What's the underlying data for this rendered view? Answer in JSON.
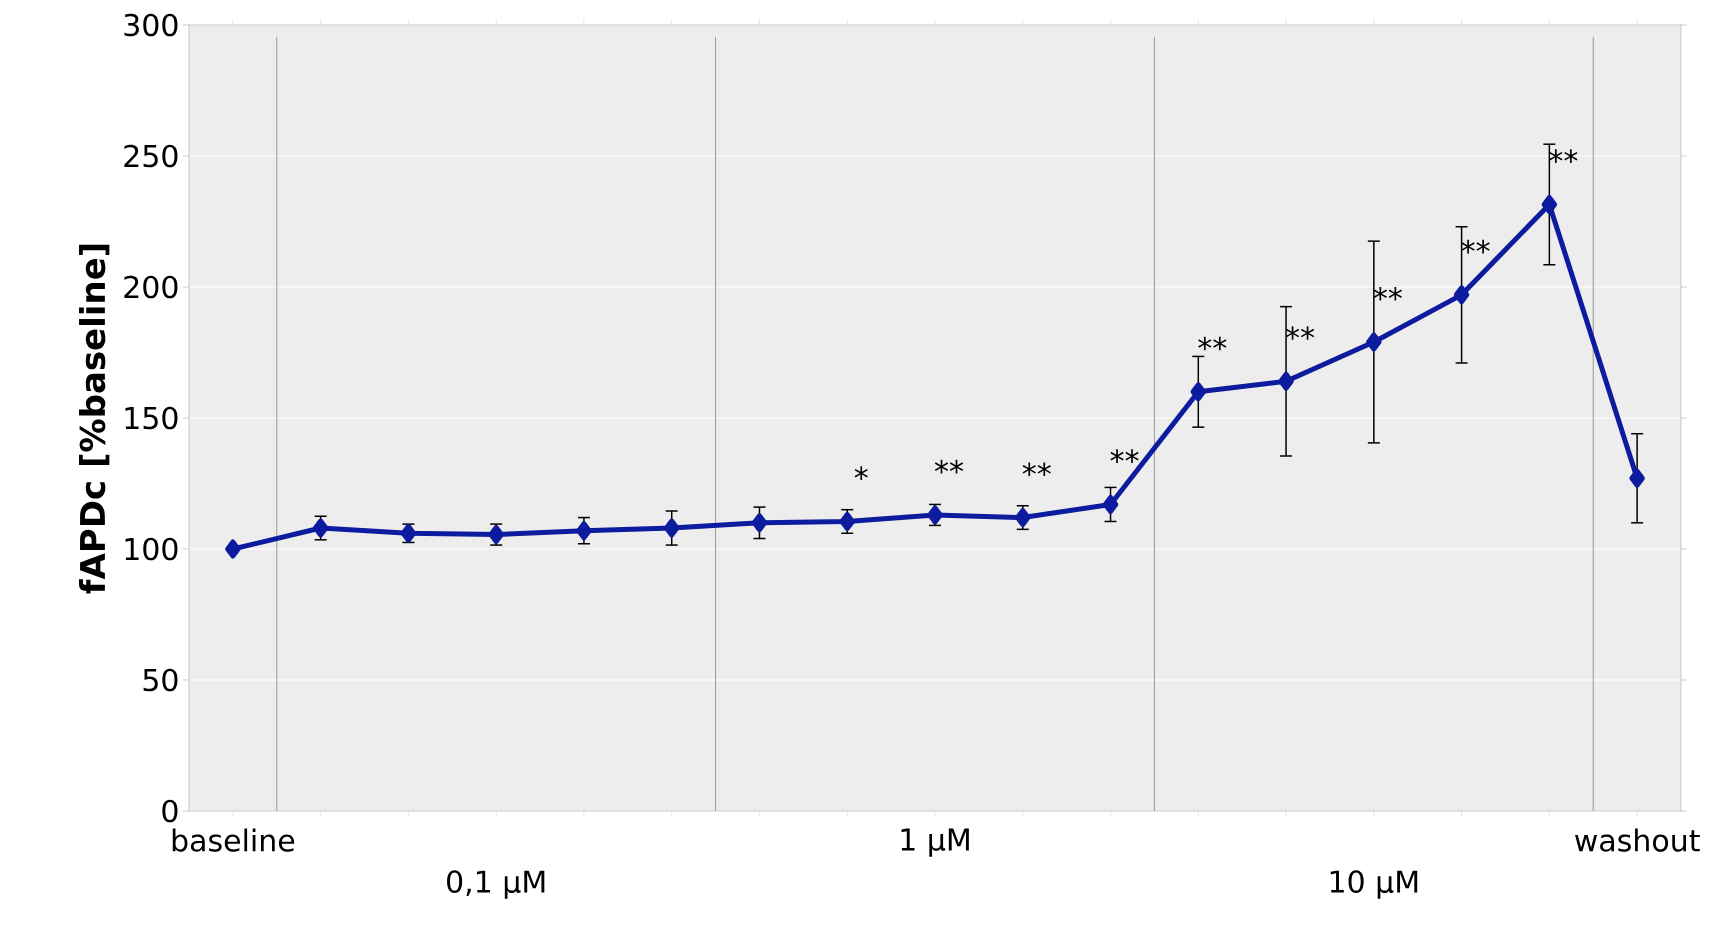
{
  "chart_data": {
    "type": "line",
    "ylabel": "fAPDc [%baseline]",
    "categories": [
      "baseline",
      null,
      null,
      "0,1 µM",
      null,
      null,
      null,
      null,
      "1 µM",
      null,
      null,
      null,
      null,
      "10 µM",
      null,
      null,
      "washout"
    ],
    "series": [
      {
        "color": "#0d1b9e",
        "values": [
          100,
          108,
          106,
          105.5,
          107,
          108,
          110,
          110.5,
          113,
          112,
          117,
          160,
          164,
          179,
          197,
          231.5,
          127
        ],
        "errors": [
          null,
          4.5,
          3.5,
          4,
          5,
          6.5,
          6,
          4.5,
          4,
          4.5,
          6.5,
          13.5,
          28.5,
          38.5,
          26,
          23,
          17
        ],
        "value_labels": [
          null,
          null,
          null,
          null,
          null,
          null,
          null,
          "*",
          "**",
          "**",
          "**",
          "**",
          "**",
          "**",
          "**",
          "**",
          null
        ]
      }
    ],
    "ylim": [
      0,
      300
    ],
    "yticks": [
      0,
      50,
      100,
      150,
      200,
      250,
      300
    ],
    "grid": "y",
    "marker": "diamond",
    "line_style": "solid"
  }
}
